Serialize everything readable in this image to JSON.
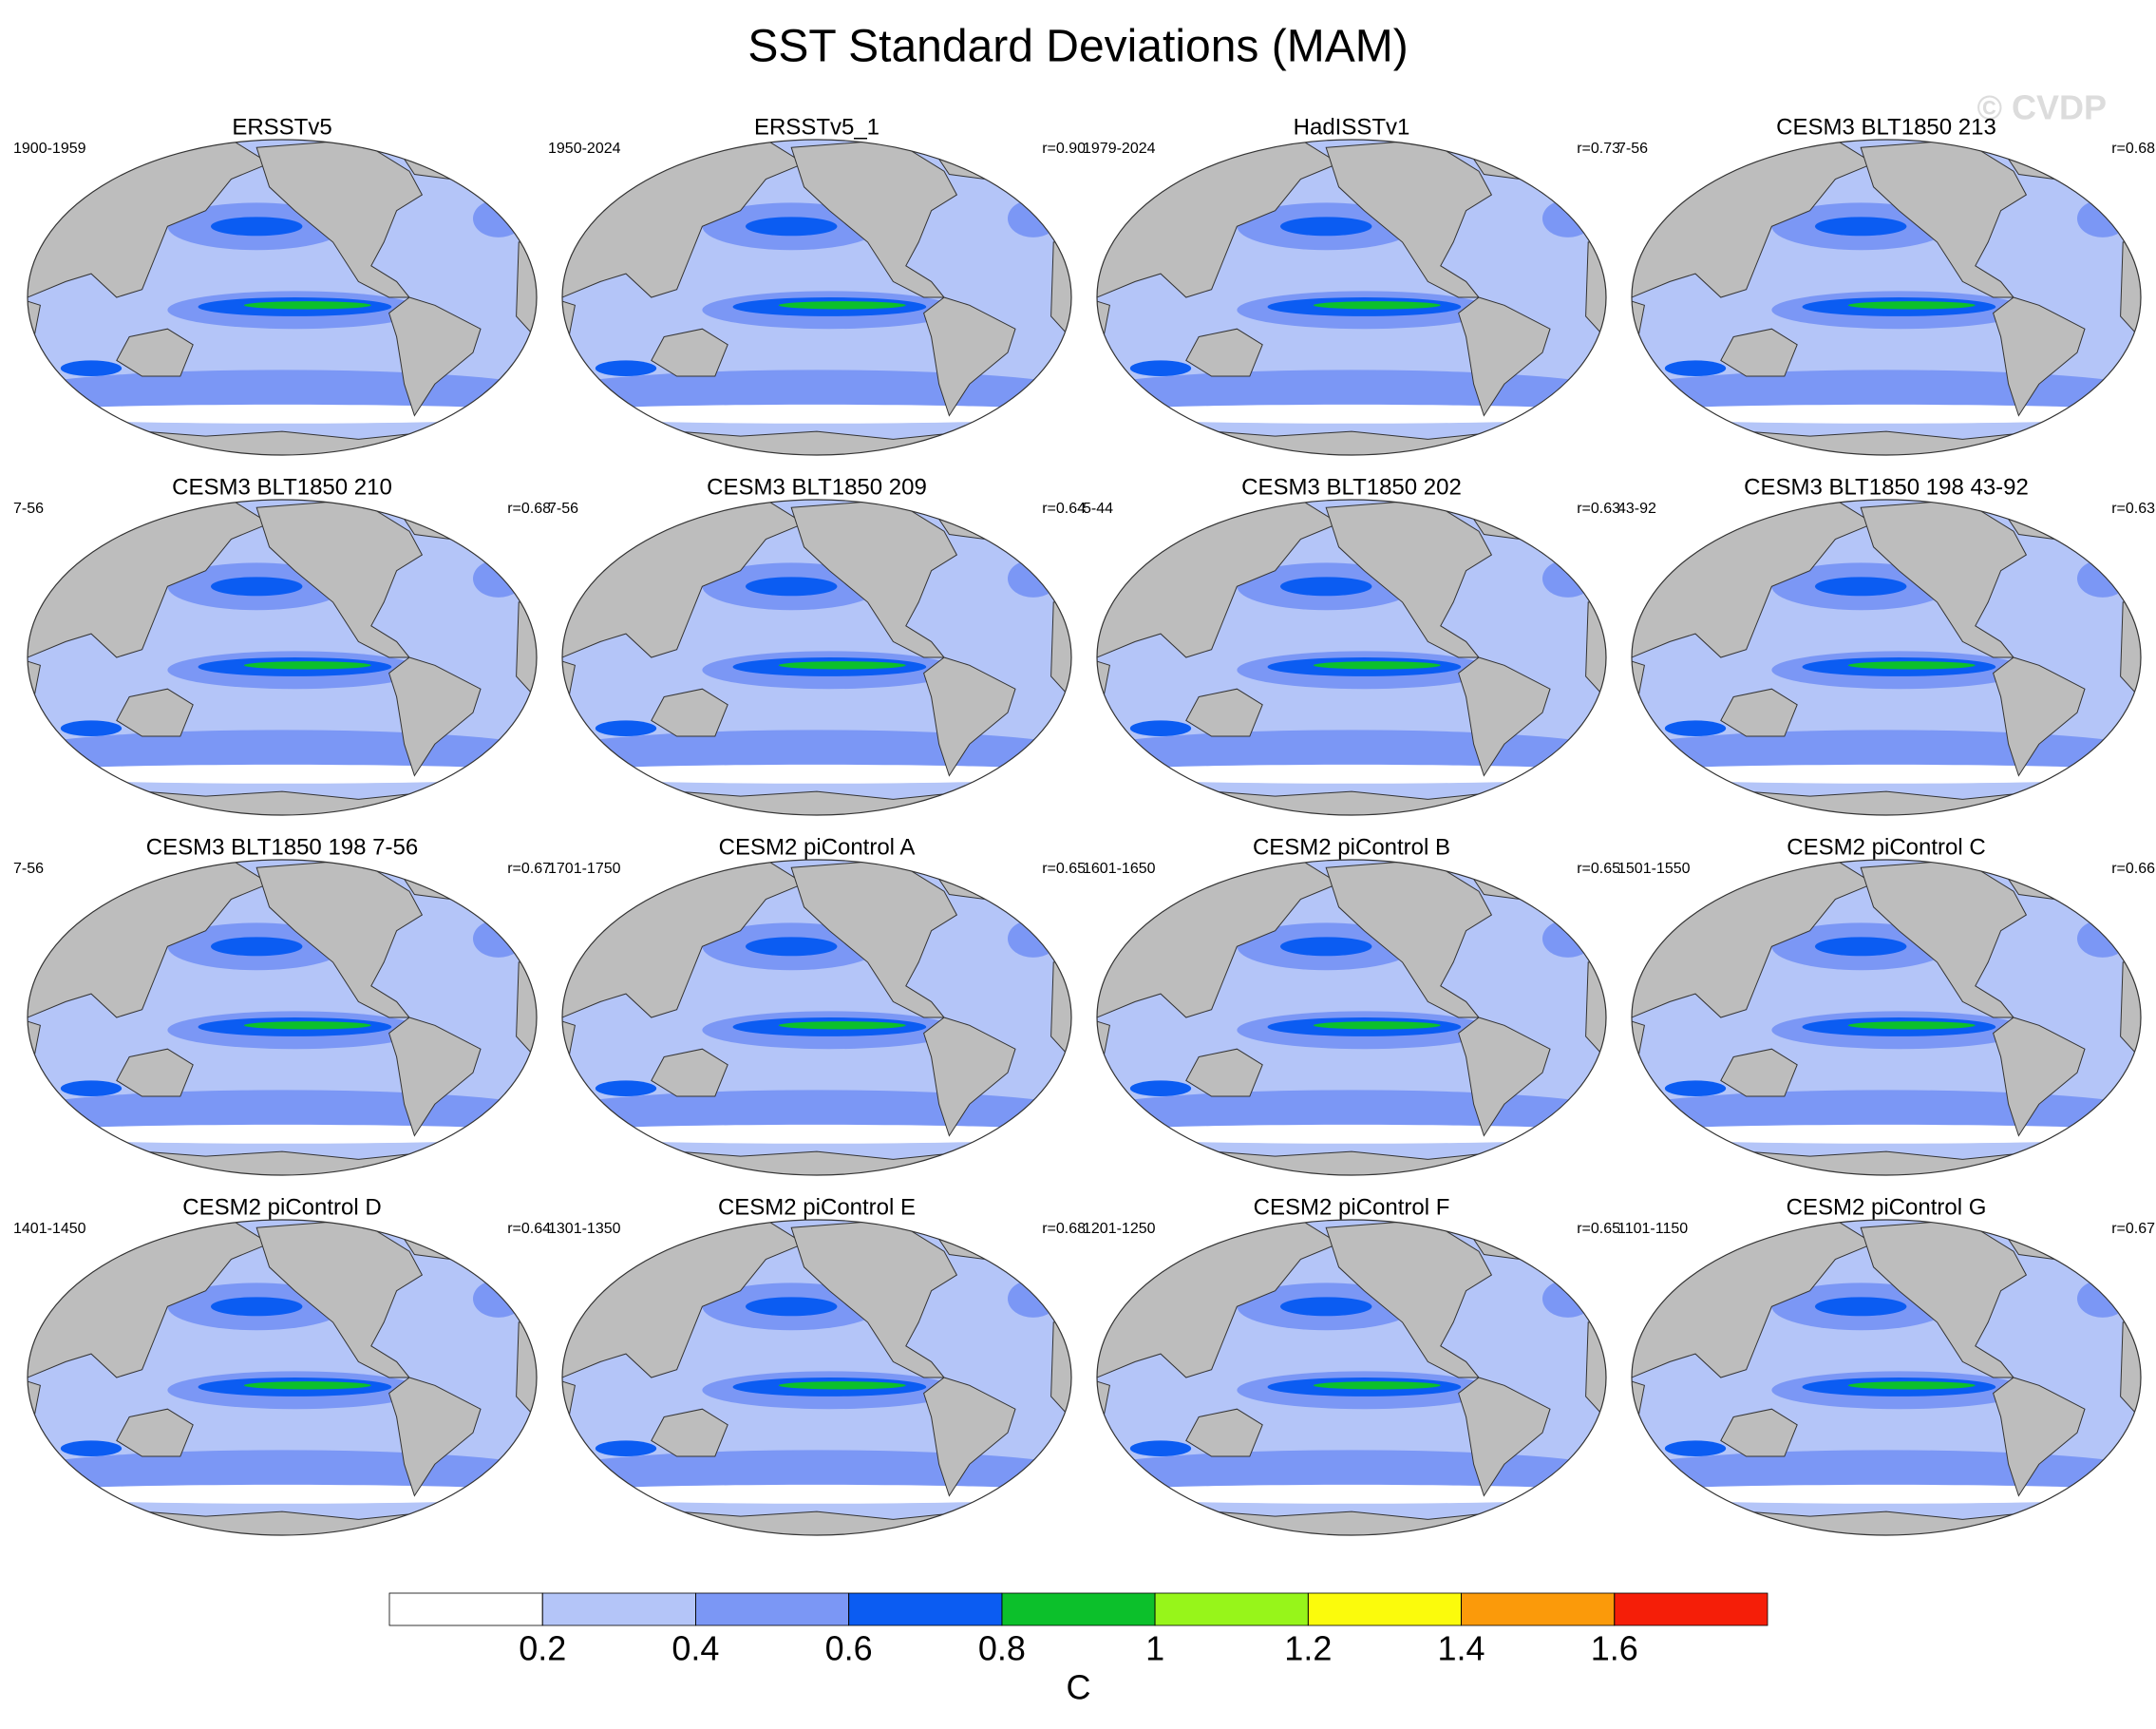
{
  "title": "SST Standard Deviations (MAM)",
  "watermark": "© CVDP",
  "panels": [
    {
      "title": "ERSSTv5",
      "left": "1900-1959"
    },
    {
      "title": "ERSSTv5_1",
      "left": "1950-2024",
      "right": "r=0.90"
    },
    {
      "title": "HadISSTv1",
      "left": "1979-2024",
      "right": "r=0.73"
    },
    {
      "title": "CESM3 BLT1850 213",
      "left": "7-56",
      "right": "r=0.68"
    },
    {
      "title": "CESM3 BLT1850 210",
      "left": "7-56",
      "right": "r=0.68"
    },
    {
      "title": "CESM3 BLT1850 209",
      "left": "7-56",
      "right": "r=0.64"
    },
    {
      "title": "CESM3 BLT1850 202",
      "left": "5-44",
      "right": "r=0.63"
    },
    {
      "title": "CESM3 BLT1850 198 43-92",
      "left": "43-92",
      "right": "r=0.63"
    },
    {
      "title": "CESM3 BLT1850 198 7-56",
      "left": "7-56",
      "right": "r=0.67"
    },
    {
      "title": "CESM2 piControl A",
      "left": "1701-1750",
      "right": "r=0.65"
    },
    {
      "title": "CESM2 piControl B",
      "left": "1601-1650",
      "right": "r=0.65"
    },
    {
      "title": "CESM2 piControl C",
      "left": "1501-1550",
      "right": "r=0.66"
    },
    {
      "title": "CESM2 piControl D",
      "left": "1401-1450",
      "right": "r=0.64"
    },
    {
      "title": "CESM2 piControl E",
      "left": "1301-1350",
      "right": "r=0.68"
    },
    {
      "title": "CESM2 piControl F",
      "left": "1201-1250",
      "right": "r=0.65"
    },
    {
      "title": "CESM2 piControl G",
      "left": "1101-1150",
      "right": "r=0.67"
    }
  ],
  "colorbar": {
    "colors": [
      "#ffffff",
      "#b4c5f8",
      "#7b97f5",
      "#0b5cf2",
      "#0cc02b",
      "#97f51a",
      "#fbfb0c",
      "#fb9a0a",
      "#f51e08"
    ],
    "lim": [
      0,
      1.8
    ],
    "ticks": [
      0.2,
      0.4,
      0.6,
      0.8,
      1,
      1.2,
      1.4,
      1.6
    ],
    "label": "C"
  }
}
